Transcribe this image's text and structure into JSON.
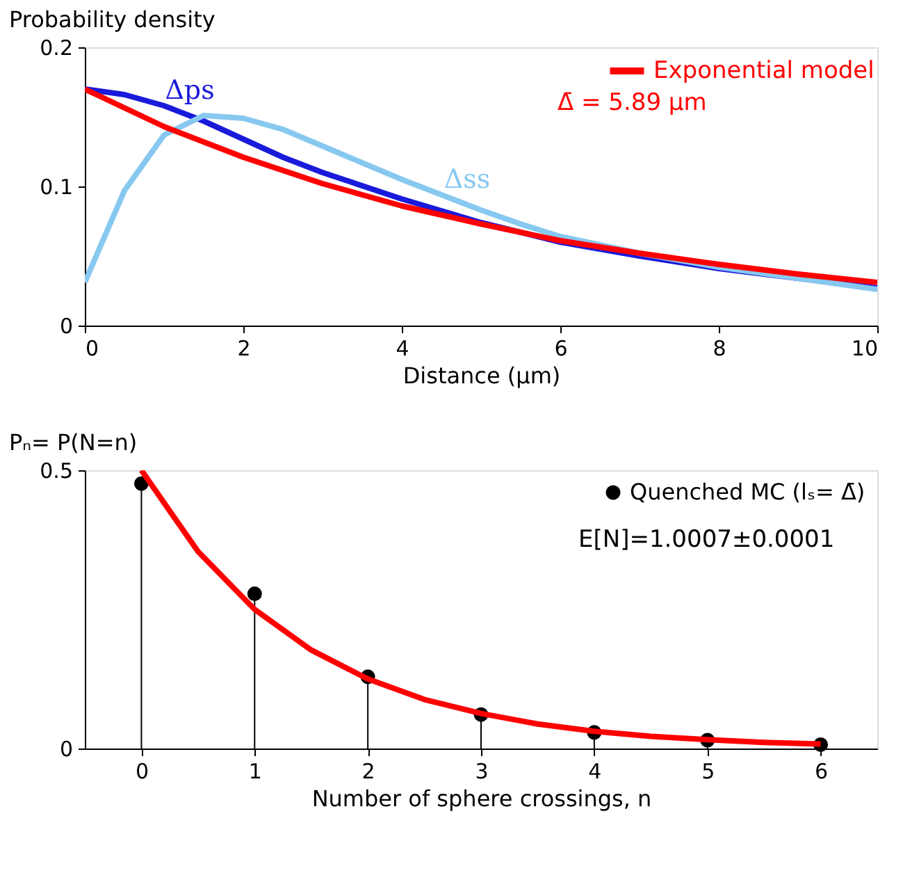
{
  "chart_data": [
    {
      "type": "line",
      "ylabel": "Probability density",
      "xlabel": "Distance (μm)",
      "xlim": [
        0,
        10
      ],
      "ylim": [
        0,
        0.2
      ],
      "xticks": [
        0,
        2,
        4,
        6,
        8,
        10
      ],
      "yticks": [
        0,
        0.1,
        0.2
      ],
      "legend": "top right",
      "marker": "none",
      "line_style": "solid",
      "annotations": [
        "Δ̄ = 5.89 μm"
      ],
      "series": [
        {
          "name": "Δps",
          "color": "#1a1adb",
          "x": [
            0,
            0.5,
            1,
            1.5,
            2,
            2.5,
            3,
            4,
            5,
            6,
            7,
            8,
            9,
            10
          ],
          "values": [
            0.17,
            0.166,
            0.158,
            0.147,
            0.134,
            0.121,
            0.11,
            0.091,
            0.074,
            0.06,
            0.05,
            0.041,
            0.034,
            0.027
          ]
        },
        {
          "name": "Δss",
          "color": "#87c8f0",
          "x": [
            0,
            0.5,
            1,
            1.5,
            2,
            2.5,
            3,
            3.5,
            4,
            4.5,
            5,
            5.5,
            6,
            7,
            8,
            9,
            10
          ],
          "values": [
            0.031,
            0.097,
            0.137,
            0.151,
            0.149,
            0.141,
            0.129,
            0.117,
            0.105,
            0.094,
            0.083,
            0.073,
            0.064,
            0.052,
            0.042,
            0.034,
            0.026
          ]
        },
        {
          "name": "Exponential model",
          "color": "#ff0000",
          "x": [
            0,
            1,
            2,
            3,
            4,
            5,
            6,
            7,
            8,
            9,
            10
          ],
          "values": [
            0.17,
            0.143,
            0.121,
            0.102,
            0.086,
            0.073,
            0.061,
            0.052,
            0.044,
            0.037,
            0.031
          ]
        }
      ]
    },
    {
      "type": "line",
      "ylabel": "Pₙ= P(N=n)",
      "xlabel": "Number of sphere crossings, n",
      "xlim": [
        -0.5,
        6.5
      ],
      "ylim": [
        0,
        0.5
      ],
      "xticks": [
        0,
        1,
        2,
        3,
        4,
        5,
        6
      ],
      "yticks": [
        0,
        0.5
      ],
      "legend": "top right",
      "annotations": [
        "E[N]=1.0007±0.0001"
      ],
      "series": [
        {
          "type": "lollipop",
          "name": "Quenched MC (lₛ= Δ̄)",
          "color": "#000000",
          "marker": "circle",
          "x": [
            0,
            1,
            2,
            3,
            4,
            5,
            6
          ],
          "values": [
            0.476,
            0.278,
            0.129,
            0.061,
            0.029,
            0.015,
            0.007
          ]
        },
        {
          "type": "line",
          "color": "#ff0000",
          "x": [
            0,
            0.5,
            1,
            1.5,
            2,
            2.5,
            3,
            3.5,
            4,
            4.5,
            5,
            5.5,
            6
          ],
          "values": [
            0.5,
            0.354,
            0.25,
            0.177,
            0.125,
            0.088,
            0.063,
            0.044,
            0.031,
            0.022,
            0.016,
            0.011,
            0.008
          ]
        }
      ]
    }
  ]
}
